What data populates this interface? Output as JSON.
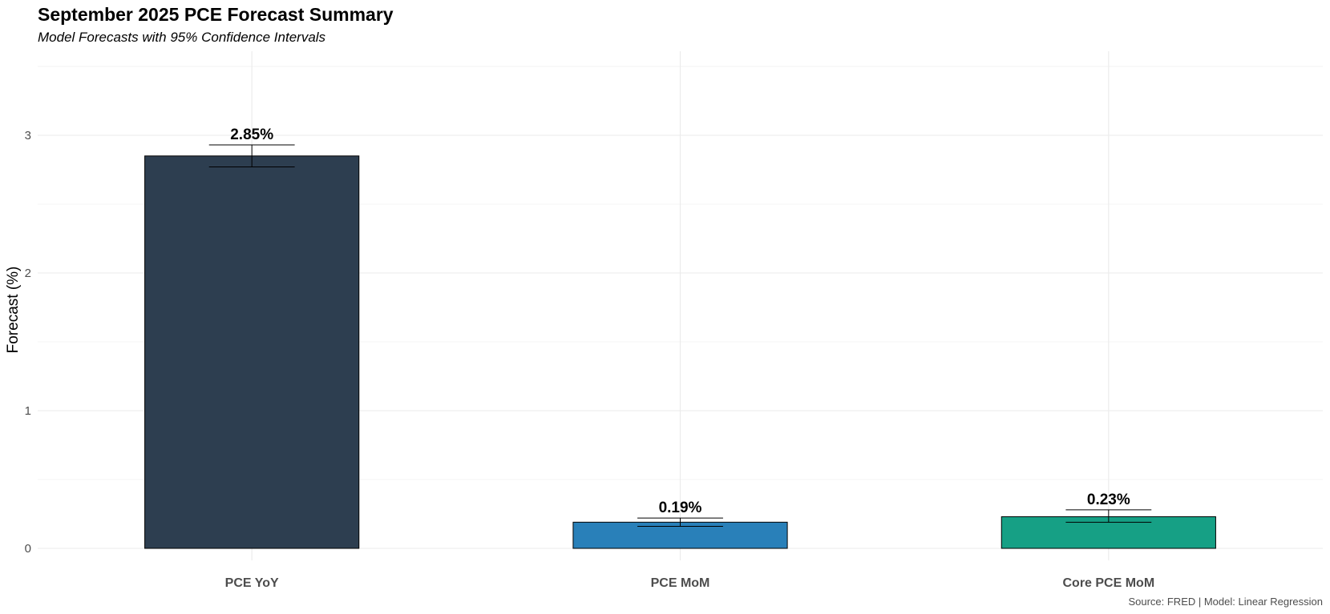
{
  "chart_data": {
    "type": "bar",
    "title": "September 2025 PCE Forecast Summary",
    "subtitle": "Model Forecasts with 95% Confidence Intervals",
    "xlabel": "",
    "ylabel": "Forecast (%)",
    "caption": "Source: FRED | Model: Linear Regression",
    "categories": [
      "PCE YoY",
      "PCE MoM",
      "Core PCE MoM"
    ],
    "values": [
      2.85,
      0.19,
      0.23
    ],
    "labels": [
      "2.85%",
      "0.19%",
      "0.23%"
    ],
    "ci_lower": [
      2.77,
      0.16,
      0.19
    ],
    "ci_upper": [
      2.93,
      0.22,
      0.28
    ],
    "colors": [
      "#2d3e50",
      "#2980b9",
      "#16a085"
    ],
    "ylim": [
      -0.1,
      3.55
    ],
    "yticks": [
      0,
      1,
      2,
      3
    ],
    "ytick_labels": [
      "0",
      "1",
      "2",
      "3"
    ],
    "grid": true,
    "legend": "none"
  }
}
